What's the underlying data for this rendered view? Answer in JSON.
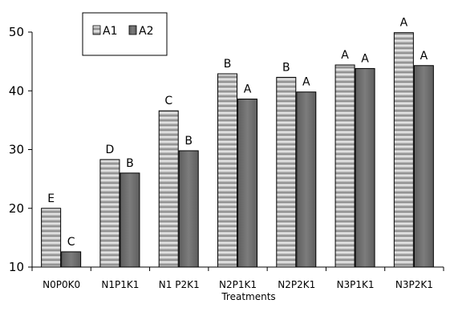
{
  "chart_data": {
    "type": "bar",
    "title": "",
    "xlabel": "Treatments",
    "ylabel": "",
    "ylim": [
      10,
      50
    ],
    "yticks": [
      10,
      20,
      30,
      40,
      50
    ],
    "grid": false,
    "legend_position": "top-left",
    "categories": [
      "N0P0K0",
      "N1P1K1",
      "N1 P2K1",
      "N2P1K1",
      "N2P2K1",
      "N3P1K1",
      "N3P2K1"
    ],
    "series": [
      {
        "name": "A1",
        "values": [
          20.0,
          28.3,
          36.6,
          42.9,
          42.3,
          44.4,
          49.9
        ],
        "labels": [
          "E",
          "D",
          "C",
          "B",
          "B",
          "A",
          "A"
        ],
        "color": "#bcbcbc",
        "pattern": "horizontal-stripes"
      },
      {
        "name": "A2",
        "values": [
          12.6,
          26.0,
          29.8,
          38.6,
          39.8,
          43.8,
          44.3
        ],
        "labels": [
          "C",
          "B",
          "B",
          "A",
          "A",
          "A",
          "A"
        ],
        "color": "#6e6e6e",
        "pattern": "solid"
      }
    ]
  }
}
